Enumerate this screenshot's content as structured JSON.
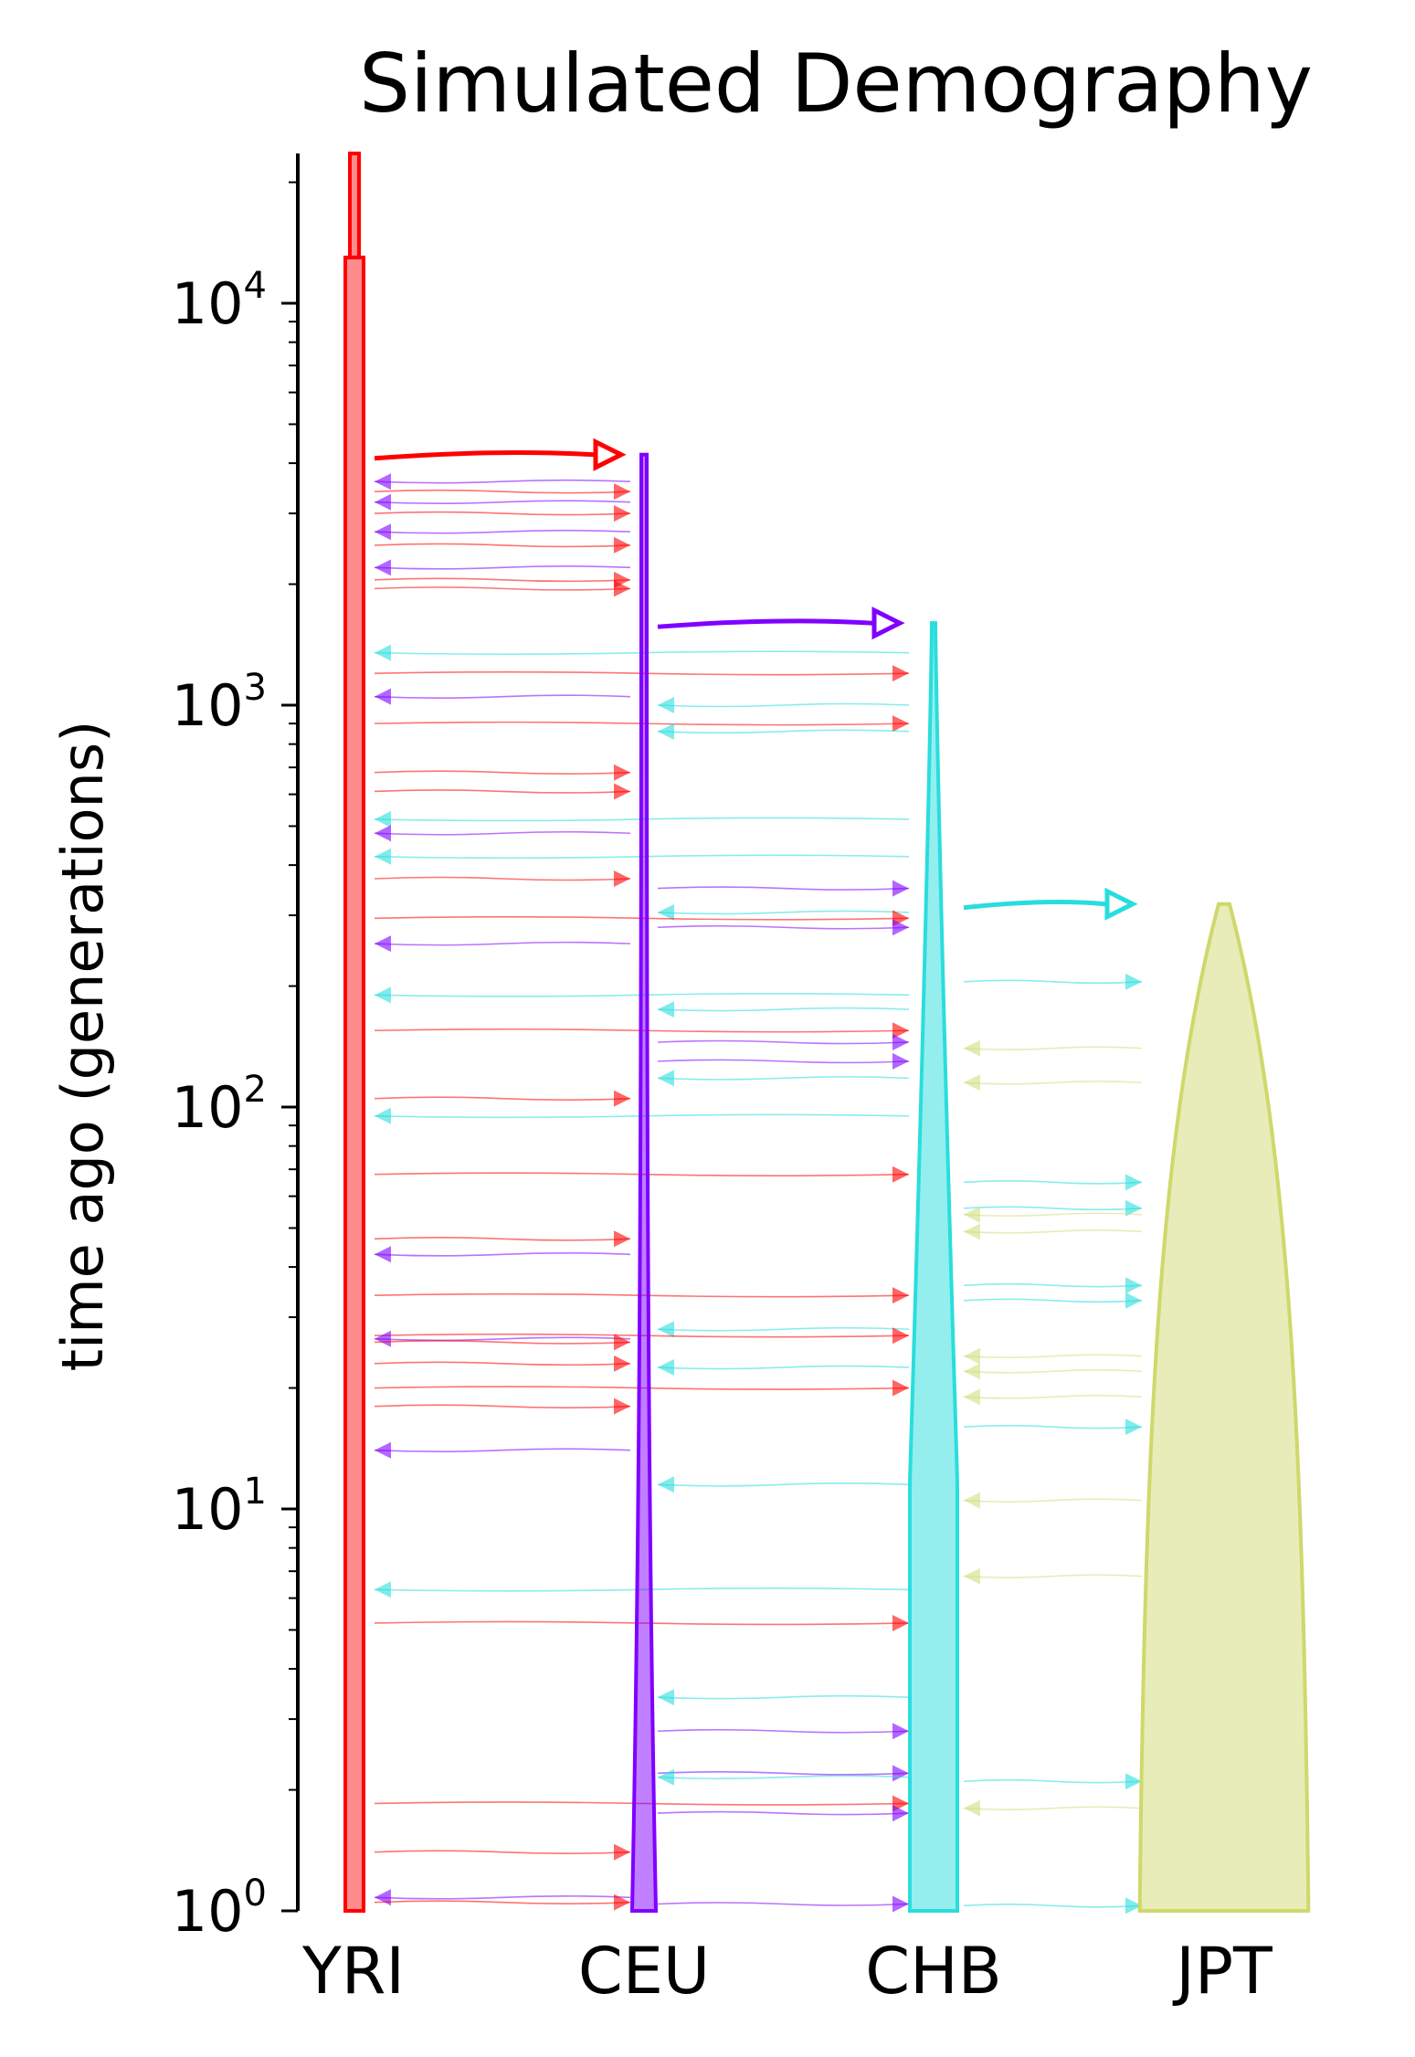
{
  "title": "Simulated Demography",
  "ylabel": "time ago (generations)",
  "yaxis": {
    "scale": "log",
    "ylim": [
      1,
      25000
    ],
    "major_ticks": [
      {
        "value": 1,
        "base": "10",
        "exp": "0"
      },
      {
        "value": 10,
        "base": "10",
        "exp": "1"
      },
      {
        "value": 100,
        "base": "10",
        "exp": "2"
      },
      {
        "value": 1000,
        "base": "10",
        "exp": "3"
      },
      {
        "value": 10000,
        "base": "10",
        "exp": "4"
      }
    ]
  },
  "colors": {
    "YRI": "#ff0000",
    "CEU": "#8000ff",
    "CHB": "#2adddd",
    "JPT": "#d4dd80"
  },
  "populations": [
    {
      "name": "YRI",
      "color": "#ff0000",
      "split_time": null
    },
    {
      "name": "CEU",
      "color": "#8000ff",
      "split_time": 4200,
      "split_from": "YRI"
    },
    {
      "name": "CHB",
      "color": "#2adddd",
      "split_time": 1600,
      "split_from": "CEU"
    },
    {
      "name": "JPT",
      "color": "#d4dd80",
      "split_time": 320,
      "split_from": "CHB"
    }
  ],
  "splits": [
    {
      "from": "YRI",
      "to": "CEU",
      "time": 4200,
      "color": "#ff0000"
    },
    {
      "from": "CEU",
      "to": "CHB",
      "time": 1600,
      "color": "#8000ff"
    },
    {
      "from": "CHB",
      "to": "JPT",
      "time": 320,
      "color": "#2adddd"
    }
  ],
  "migrations": [
    {
      "from": "CEU",
      "to": "YRI",
      "time": 3600,
      "color": "#8000ff"
    },
    {
      "from": "YRI",
      "to": "CEU",
      "time": 3400,
      "color": "#ff0000"
    },
    {
      "from": "CEU",
      "to": "YRI",
      "time": 3200,
      "color": "#8000ff"
    },
    {
      "from": "YRI",
      "to": "CEU",
      "time": 3000,
      "color": "#ff0000"
    },
    {
      "from": "CEU",
      "to": "YRI",
      "time": 2700,
      "color": "#8000ff"
    },
    {
      "from": "YRI",
      "to": "CEU",
      "time": 2500,
      "color": "#ff0000"
    },
    {
      "from": "CEU",
      "to": "YRI",
      "time": 2200,
      "color": "#8000ff"
    },
    {
      "from": "YRI",
      "to": "CEU",
      "time": 2050,
      "color": "#ff0000"
    },
    {
      "from": "YRI",
      "to": "CEU",
      "time": 1950,
      "color": "#ff0000"
    },
    {
      "from": "CHB",
      "to": "YRI",
      "time": 1350,
      "color": "#2adddd"
    },
    {
      "from": "YRI",
      "to": "CHB",
      "time": 1200,
      "color": "#ff0000"
    },
    {
      "from": "CEU",
      "to": "YRI",
      "time": 1050,
      "color": "#8000ff"
    },
    {
      "from": "CHB",
      "to": "CEU",
      "time": 1000,
      "color": "#2adddd"
    },
    {
      "from": "YRI",
      "to": "CHB",
      "time": 900,
      "color": "#ff0000"
    },
    {
      "from": "CHB",
      "to": "CEU",
      "time": 860,
      "color": "#2adddd"
    },
    {
      "from": "YRI",
      "to": "CEU",
      "time": 680,
      "color": "#ff0000"
    },
    {
      "from": "YRI",
      "to": "CEU",
      "time": 610,
      "color": "#ff0000"
    },
    {
      "from": "CHB",
      "to": "YRI",
      "time": 520,
      "color": "#2adddd"
    },
    {
      "from": "CEU",
      "to": "YRI",
      "time": 480,
      "color": "#8000ff"
    },
    {
      "from": "CHB",
      "to": "YRI",
      "time": 420,
      "color": "#2adddd"
    },
    {
      "from": "YRI",
      "to": "CEU",
      "time": 370,
      "color": "#ff0000"
    },
    {
      "from": "CEU",
      "to": "CHB",
      "time": 350,
      "color": "#8000ff"
    },
    {
      "from": "CHB",
      "to": "CEU",
      "time": 305,
      "color": "#2adddd"
    },
    {
      "from": "YRI",
      "to": "CHB",
      "time": 295,
      "color": "#ff0000"
    },
    {
      "from": "CEU",
      "to": "CHB",
      "time": 280,
      "color": "#8000ff"
    },
    {
      "from": "CEU",
      "to": "YRI",
      "time": 255,
      "color": "#8000ff"
    },
    {
      "from": "CHB",
      "to": "JPT",
      "time": 205,
      "color": "#2adddd"
    },
    {
      "from": "CHB",
      "to": "YRI",
      "time": 190,
      "color": "#2adddd"
    },
    {
      "from": "CHB",
      "to": "CEU",
      "time": 175,
      "color": "#2adddd"
    },
    {
      "from": "YRI",
      "to": "CHB",
      "time": 155,
      "color": "#ff0000"
    },
    {
      "from": "CEU",
      "to": "CHB",
      "time": 145,
      "color": "#8000ff"
    },
    {
      "from": "JPT",
      "to": "CHB",
      "time": 140,
      "color": "#d4dd80"
    },
    {
      "from": "CEU",
      "to": "CHB",
      "time": 130,
      "color": "#8000ff"
    },
    {
      "from": "CHB",
      "to": "CEU",
      "time": 118,
      "color": "#2adddd"
    },
    {
      "from": "JPT",
      "to": "CHB",
      "time": 115,
      "color": "#d4dd80"
    },
    {
      "from": "YRI",
      "to": "CEU",
      "time": 105,
      "color": "#ff0000"
    },
    {
      "from": "CHB",
      "to": "YRI",
      "time": 95,
      "color": "#2adddd"
    },
    {
      "from": "YRI",
      "to": "CHB",
      "time": 68,
      "color": "#ff0000"
    },
    {
      "from": "CHB",
      "to": "JPT",
      "time": 65,
      "color": "#2adddd"
    },
    {
      "from": "CHB",
      "to": "JPT",
      "time": 56,
      "color": "#2adddd"
    },
    {
      "from": "JPT",
      "to": "CHB",
      "time": 54,
      "color": "#d4dd80"
    },
    {
      "from": "JPT",
      "to": "CHB",
      "time": 49,
      "color": "#d4dd80"
    },
    {
      "from": "YRI",
      "to": "CEU",
      "time": 47,
      "color": "#ff0000"
    },
    {
      "from": "CEU",
      "to": "YRI",
      "time": 43,
      "color": "#8000ff"
    },
    {
      "from": "CHB",
      "to": "JPT",
      "time": 36,
      "color": "#2adddd"
    },
    {
      "from": "YRI",
      "to": "CHB",
      "time": 34,
      "color": "#ff0000"
    },
    {
      "from": "CHB",
      "to": "JPT",
      "time": 33,
      "color": "#2adddd"
    },
    {
      "from": "CHB",
      "to": "CEU",
      "time": 28,
      "color": "#2adddd"
    },
    {
      "from": "YRI",
      "to": "CHB",
      "time": 27,
      "color": "#ff0000"
    },
    {
      "from": "CEU",
      "to": "YRI",
      "time": 26.5,
      "color": "#8000ff"
    },
    {
      "from": "YRI",
      "to": "CEU",
      "time": 26,
      "color": "#ff0000"
    },
    {
      "from": "JPT",
      "to": "CHB",
      "time": 24,
      "color": "#d4dd80"
    },
    {
      "from": "YRI",
      "to": "CEU",
      "time": 23,
      "color": "#ff0000"
    },
    {
      "from": "CHB",
      "to": "CEU",
      "time": 22.5,
      "color": "#2adddd"
    },
    {
      "from": "JPT",
      "to": "CHB",
      "time": 22,
      "color": "#d4dd80"
    },
    {
      "from": "YRI",
      "to": "CHB",
      "time": 20,
      "color": "#ff0000"
    },
    {
      "from": "JPT",
      "to": "CHB",
      "time": 19,
      "color": "#d4dd80"
    },
    {
      "from": "YRI",
      "to": "CEU",
      "time": 18,
      "color": "#ff0000"
    },
    {
      "from": "CHB",
      "to": "JPT",
      "time": 16,
      "color": "#2adddd"
    },
    {
      "from": "CEU",
      "to": "YRI",
      "time": 14,
      "color": "#8000ff"
    },
    {
      "from": "CHB",
      "to": "CEU",
      "time": 11.5,
      "color": "#2adddd"
    },
    {
      "from": "JPT",
      "to": "CHB",
      "time": 10.5,
      "color": "#d4dd80"
    },
    {
      "from": "JPT",
      "to": "CHB",
      "time": 6.8,
      "color": "#d4dd80"
    },
    {
      "from": "CHB",
      "to": "YRI",
      "time": 6.3,
      "color": "#2adddd"
    },
    {
      "from": "YRI",
      "to": "CHB",
      "time": 5.2,
      "color": "#ff0000"
    },
    {
      "from": "CHB",
      "to": "CEU",
      "time": 3.4,
      "color": "#2adddd"
    },
    {
      "from": "CEU",
      "to": "CHB",
      "time": 2.8,
      "color": "#8000ff"
    },
    {
      "from": "CEU",
      "to": "CHB",
      "time": 2.2,
      "color": "#8000ff"
    },
    {
      "from": "CHB",
      "to": "CEU",
      "time": 2.15,
      "color": "#2adddd"
    },
    {
      "from": "CHB",
      "to": "JPT",
      "time": 2.1,
      "color": "#2adddd"
    },
    {
      "from": "YRI",
      "to": "CHB",
      "time": 1.85,
      "color": "#ff0000"
    },
    {
      "from": "JPT",
      "to": "CHB",
      "time": 1.8,
      "color": "#d4dd80"
    },
    {
      "from": "CEU",
      "to": "CHB",
      "time": 1.75,
      "color": "#8000ff"
    },
    {
      "from": "YRI",
      "to": "CEU",
      "time": 1.4,
      "color": "#ff0000"
    },
    {
      "from": "CEU",
      "to": "YRI",
      "time": 1.08,
      "color": "#8000ff"
    },
    {
      "from": "YRI",
      "to": "CEU",
      "time": 1.05,
      "color": "#ff0000"
    },
    {
      "from": "CEU",
      "to": "CHB",
      "time": 1.04,
      "color": "#8000ff"
    },
    {
      "from": "CHB",
      "to": "JPT",
      "time": 1.03,
      "color": "#2adddd"
    }
  ]
}
